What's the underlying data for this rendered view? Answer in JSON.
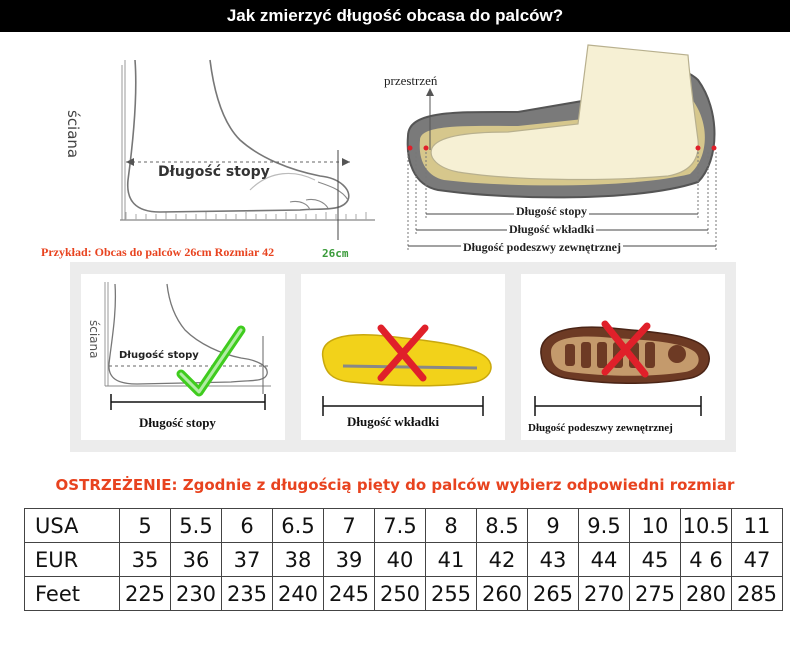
{
  "title": "Jak zmierzyć długość obcasa do palców?",
  "top_left": {
    "wall_label": "ściana",
    "foot_length_label": "Długość stopy"
  },
  "top_right": {
    "space_label": "przestrzeń",
    "foot_length_label": "Długość stopy",
    "insole_length_label": "Długość wkładki",
    "outsole_length_label": "Długość podeszwy zewnętrznej"
  },
  "example": {
    "text": "Przykład: Obcas do palców 26cm Rozmiar 42",
    "cm_label": "26cm"
  },
  "cards": [
    {
      "wall_label": "ściana",
      "inner_label": "Długość stopy",
      "label": "Długość stopy",
      "verdict": "correct"
    },
    {
      "label": "Długość wkładki",
      "verdict": "wrong"
    },
    {
      "label": "Długość podeszwy zewnętrznej",
      "verdict": "wrong"
    }
  ],
  "warning": "OSTRZEŻENIE: Zgodnie z długością pięty do palców wybierz odpowiedni rozmiar",
  "size_table": {
    "rows": [
      {
        "label": "USA",
        "values": [
          "5",
          "5.5",
          "6",
          "6.5",
          "7",
          "7.5",
          "8",
          "8.5",
          "9",
          "9.5",
          "10",
          "10.5",
          "11"
        ]
      },
      {
        "label": "EUR",
        "values": [
          "35",
          "36",
          "37",
          "38",
          "39",
          "40",
          "41",
          "42",
          "43",
          "44",
          "45",
          "4 6",
          "47"
        ]
      },
      {
        "label": "Feet",
        "values": [
          "225",
          "230",
          "235",
          "240",
          "245",
          "250",
          "255",
          "260",
          "265",
          "270",
          "275",
          "280",
          "285"
        ]
      }
    ]
  },
  "colors": {
    "accent_red": "#e8431f",
    "check_green": "#3fcc1e",
    "cross_red": "#e0202a",
    "insole_yellow": "#f2d21a"
  }
}
